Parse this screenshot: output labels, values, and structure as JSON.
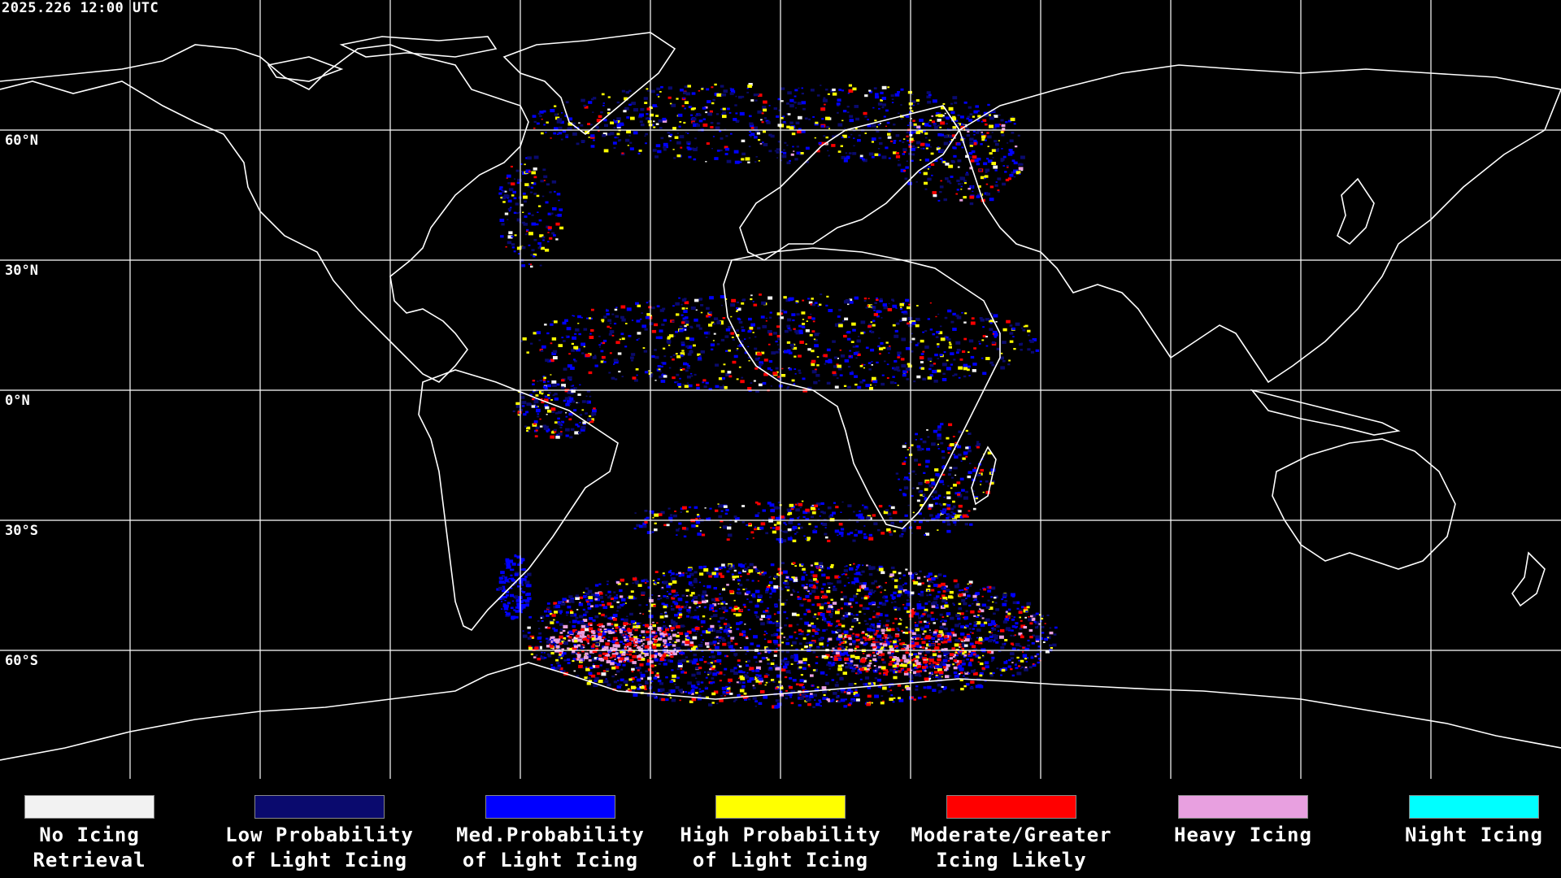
{
  "map": {
    "timestamp": "2025.226 12:00 UTC",
    "lat_labels": [
      "60°N",
      "30°N",
      "0°N",
      "30°S",
      "60°S"
    ],
    "colors": {
      "background": "#000000",
      "coastline": "#ffffff",
      "grid": "#ffffff"
    }
  },
  "legend": {
    "items": [
      {
        "line1": "No Icing",
        "line2": "Retrieval",
        "color": "#f2f2f2"
      },
      {
        "line1": "Low Probability",
        "line2": "of Light Icing",
        "color": "#0a0a6e"
      },
      {
        "line1": "Med.Probability",
        "line2": "of Light Icing",
        "color": "#0000ff"
      },
      {
        "line1": "High Probability",
        "line2": "of Light Icing",
        "color": "#ffff00"
      },
      {
        "line1": "Moderate/Greater",
        "line2": "Icing Likely",
        "color": "#ff0000"
      },
      {
        "line1": "Heavy Icing",
        "line2": "",
        "color": "#e8a0e0"
      },
      {
        "line1": "Night Icing",
        "line2": "",
        "color": "#00ffff"
      }
    ]
  }
}
